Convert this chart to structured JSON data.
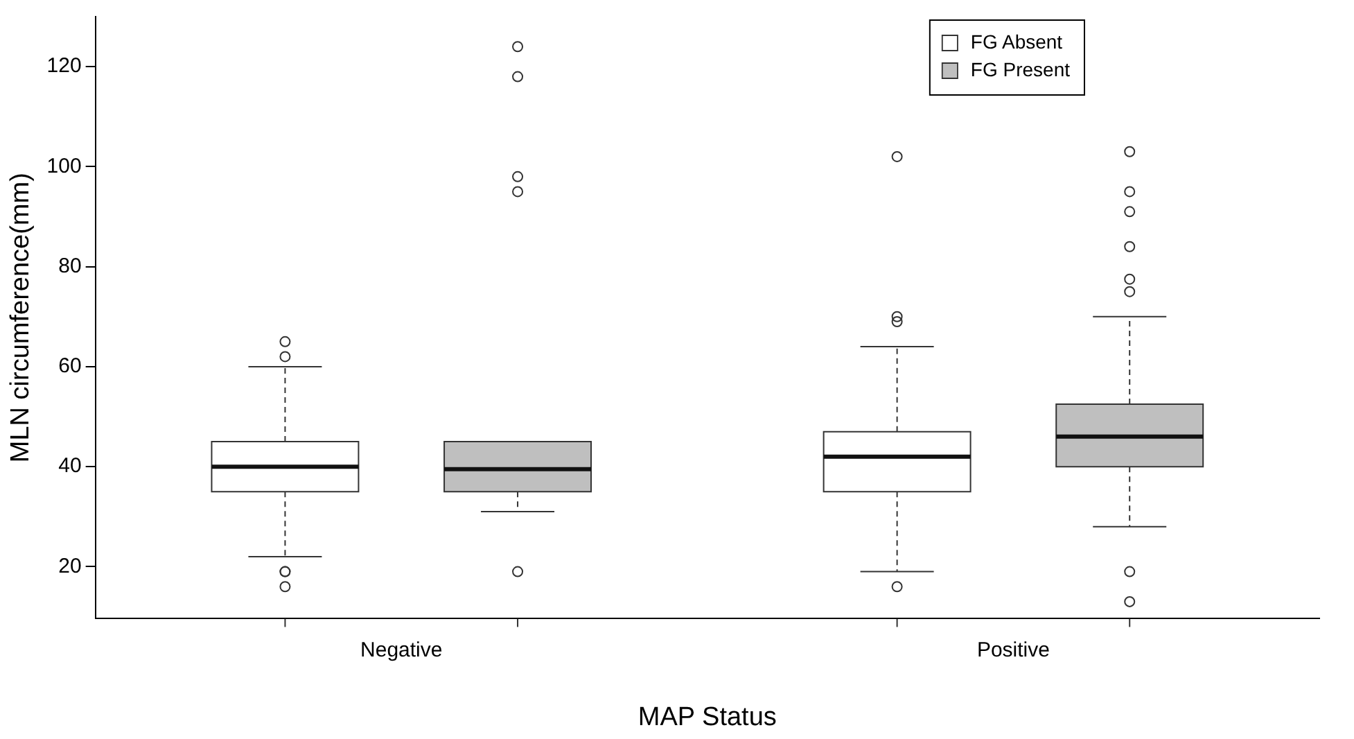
{
  "chart_data": {
    "type": "box",
    "xlabel": "MAP Status",
    "ylabel": "MLN circumference(mm)",
    "categories": [
      "Negative",
      "Positive"
    ],
    "ylim": [
      9.6,
      130
    ],
    "yticks": [
      20,
      40,
      60,
      80,
      100,
      120
    ],
    "grid": false,
    "legend": "top right",
    "series": [
      {
        "name": "FG Absent",
        "color": "#ffffff",
        "boxes": [
          {
            "low": 22,
            "q1": 35,
            "median": 40,
            "q3": 45,
            "high": 60,
            "outliers": [
              65,
              62,
              19,
              19,
              16
            ]
          },
          {
            "low": 19,
            "q1": 35,
            "median": 42,
            "q3": 47,
            "high": 64,
            "outliers": [
              102,
              70,
              69,
              16
            ]
          }
        ]
      },
      {
        "name": "FG Present",
        "color": "#bfbfbf",
        "boxes": [
          {
            "low": 31,
            "q1": 35,
            "median": 39.5,
            "q3": 45,
            "high": 45,
            "outliers": [
              124,
              118,
              98,
              95,
              19
            ]
          },
          {
            "low": 28,
            "q1": 40,
            "median": 46,
            "q3": 52.5,
            "high": 70,
            "outliers": [
              103,
              95,
              91,
              84,
              77.5,
              75,
              19,
              13
            ]
          }
        ]
      }
    ]
  }
}
